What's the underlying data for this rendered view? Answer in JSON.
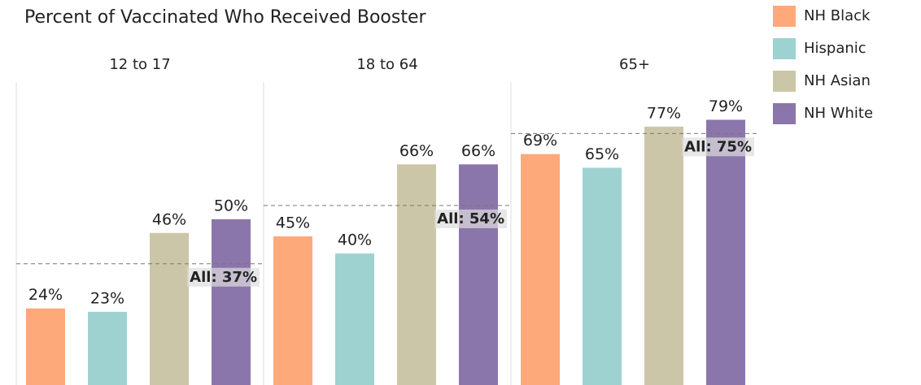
{
  "chart_data": {
    "type": "bar",
    "title": "Percent of Vaccinated Who Received Booster",
    "categories": [
      "12 to 17",
      "18 to 64",
      "65+"
    ],
    "series": [
      {
        "name": "NH Black",
        "color": "#fda97a",
        "values": [
          24,
          45,
          69
        ],
        "value_labels": [
          "24%",
          "45%",
          "69%"
        ]
      },
      {
        "name": "Hispanic",
        "color": "#9dd2d0",
        "values": [
          23,
          40,
          65
        ],
        "value_labels": [
          "23%",
          "40%",
          "65%"
        ]
      },
      {
        "name": "NH Asian",
        "color": "#ccc6a8",
        "values": [
          46,
          66,
          77
        ],
        "value_labels": [
          "46%",
          "66%",
          "77%"
        ]
      },
      {
        "name": "NH White",
        "color": "#8b76ab",
        "values": [
          50,
          66,
          79
        ],
        "value_labels": [
          "50%",
          "66%",
          "79%"
        ]
      }
    ],
    "reference": {
      "values": [
        37,
        54,
        75
      ],
      "value_labels": [
        "All: 37%",
        "All: 54%",
        "All: 75%"
      ]
    },
    "ylim": [
      0,
      90
    ],
    "legend": "right"
  }
}
